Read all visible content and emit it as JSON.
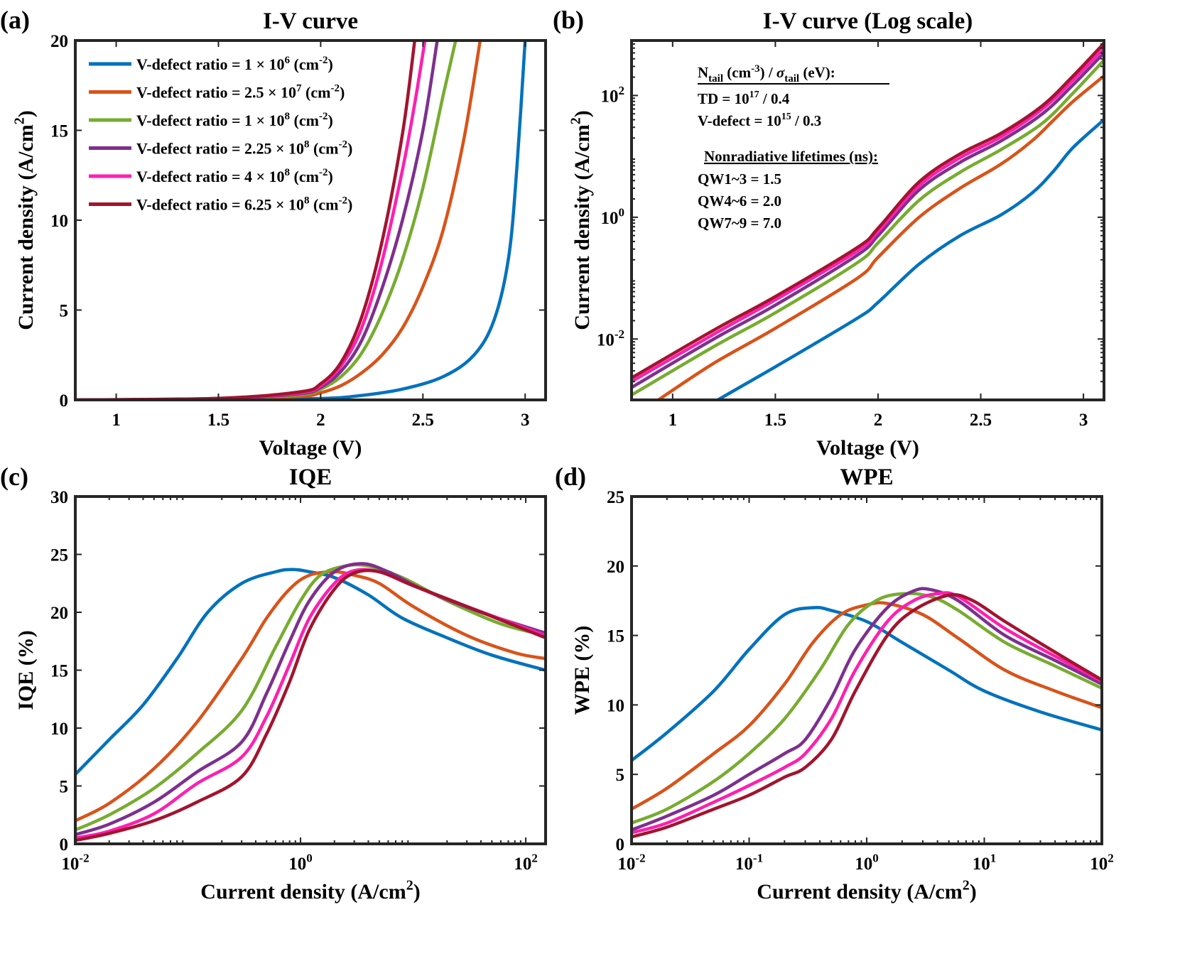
{
  "colors": [
    "#0072BD",
    "#D95319",
    "#77AC30",
    "#7E2F8E",
    "#FF1FB0",
    "#A2142F"
  ],
  "legend": [
    {
      "base": "V-defect ratio = 1 × 10",
      "exp": "6",
      "unit": " (cm",
      "unitexp": "-2",
      "close": ")"
    },
    {
      "base": "V-defect ratio = 2.5 × 10",
      "exp": "7",
      "unit": " (cm",
      "unitexp": "-2",
      "close": ")"
    },
    {
      "base": "V-defect ratio = 1 × 10",
      "exp": "8",
      "unit": " (cm",
      "unitexp": "-2",
      "close": ")"
    },
    {
      "base": "V-defect ratio = 2.25 × 10",
      "exp": "8",
      "unit": " (cm",
      "unitexp": "-2",
      "close": ")"
    },
    {
      "base": "V-defect ratio = 4 × 10",
      "exp": "8",
      "unit": " (cm",
      "unitexp": "-2",
      "close": ")"
    },
    {
      "base": "V-defect ratio = 6.25 × 10",
      "exp": "8",
      "unit": " (cm",
      "unitexp": "-2",
      "close": ")"
    }
  ],
  "annotation_b": {
    "line1": {
      "n": "N",
      "nsub": "tail",
      "unit1": " (cm",
      "unit1exp": "-3",
      "slash": ") / ",
      "sigma": "σ",
      "sigmasub": "tail",
      "unit2": " (eV):"
    },
    "td": {
      "base": "TD = 10",
      "exp": "17",
      "rest": " / 0.4"
    },
    "vdef": {
      "base": "V-defect = 10",
      "exp": "15",
      "rest": " / 0.3"
    },
    "heading2": "Nonradiative lifetimes (ns):",
    "qw": [
      "QW1~3 = 1.5",
      "QW4~6 = 2.0",
      "QW7~9 = 7.0"
    ]
  },
  "chart_data": [
    {
      "panel": "(a)",
      "type": "line",
      "title": "I-V curve",
      "xlabel": "Voltage (V)",
      "ylabel": "Current density (A/cm",
      "ylabel_exp": "2",
      "ylabel_close": ")",
      "xlim": [
        0.8,
        3.1
      ],
      "ylim": [
        0,
        20
      ],
      "xscale": "linear",
      "yscale": "linear",
      "xticks": [
        {
          "v": 1,
          "t": "1"
        },
        {
          "v": 1.5,
          "t": "1.5"
        },
        {
          "v": 2,
          "t": "2"
        },
        {
          "v": 2.5,
          "t": "2.5"
        },
        {
          "v": 3,
          "t": "3"
        }
      ],
      "yticks": [
        {
          "v": 0,
          "t": "0"
        },
        {
          "v": 5,
          "t": "5"
        },
        {
          "v": 10,
          "t": "10"
        },
        {
          "v": 15,
          "t": "15"
        },
        {
          "v": 20,
          "t": "20"
        }
      ],
      "series": [
        {
          "name": "V-defect ratio = 1 × 10^6 (cm^-2)",
          "x": [
            0.8,
            1.5,
            2.0,
            2.2,
            2.4,
            2.6,
            2.75,
            2.85,
            2.92,
            2.96,
            3.0
          ],
          "y": [
            0,
            0.02,
            0.08,
            0.25,
            0.6,
            1.3,
            2.5,
            4.5,
            8,
            13,
            20
          ]
        },
        {
          "name": "V-defect ratio = 2.5 × 10^7 (cm^-2)",
          "x": [
            0.8,
            1.5,
            1.9,
            2.0,
            2.1,
            2.2,
            2.3,
            2.4,
            2.5,
            2.6,
            2.7,
            2.78
          ],
          "y": [
            0,
            0.05,
            0.2,
            0.4,
            0.8,
            1.5,
            2.5,
            4.0,
            6.3,
            9.5,
            14.5,
            20
          ]
        },
        {
          "name": "V-defect ratio = 1 × 10^8 (cm^-2)",
          "x": [
            0.8,
            1.5,
            1.9,
            2.0,
            2.1,
            2.2,
            2.3,
            2.4,
            2.5,
            2.6,
            2.66
          ],
          "y": [
            0,
            0.06,
            0.3,
            0.6,
            1.3,
            2.6,
            4.8,
            7.8,
            11.8,
            17,
            20
          ]
        },
        {
          "name": "V-defect ratio = 2.25 × 10^8 (cm^-2)",
          "x": [
            0.8,
            1.5,
            1.9,
            2.0,
            2.1,
            2.2,
            2.3,
            2.4,
            2.5,
            2.57
          ],
          "y": [
            0,
            0.07,
            0.35,
            0.7,
            1.6,
            3.3,
            6.2,
            10.0,
            15.0,
            20
          ]
        },
        {
          "name": "V-defect ratio = 4 × 10^8 (cm^-2)",
          "x": [
            0.8,
            1.5,
            1.9,
            2.0,
            2.1,
            2.2,
            2.3,
            2.4,
            2.46,
            2.51
          ],
          "y": [
            0,
            0.08,
            0.4,
            0.8,
            1.9,
            4.0,
            7.7,
            12.8,
            16.5,
            20
          ]
        },
        {
          "name": "V-defect ratio = 6.25 × 10^8 (cm^-2)",
          "x": [
            0.8,
            1.5,
            1.9,
            2.0,
            2.1,
            2.2,
            2.3,
            2.4,
            2.46
          ],
          "y": [
            0,
            0.09,
            0.45,
            0.9,
            2.1,
            4.6,
            8.8,
            14.8,
            20
          ]
        }
      ]
    },
    {
      "panel": "(b)",
      "type": "line",
      "title": "I-V curve (Log scale)",
      "xlabel": "Voltage (V)",
      "ylabel": "Current density (A/cm",
      "ylabel_exp": "2",
      "ylabel_close": ")",
      "xlim": [
        0.8,
        3.1
      ],
      "ylim": [
        0.001,
        800
      ],
      "xscale": "linear",
      "yscale": "log",
      "xticks": [
        {
          "v": 1,
          "t": "1"
        },
        {
          "v": 1.5,
          "t": "1.5"
        },
        {
          "v": 2,
          "t": "2"
        },
        {
          "v": 2.5,
          "t": "2.5"
        },
        {
          "v": 3,
          "t": "3"
        }
      ],
      "yticks": [
        {
          "v": 0.01,
          "base": "10",
          "exp": "-2"
        },
        {
          "v": 1,
          "base": "10",
          "exp": "0"
        },
        {
          "v": 100,
          "base": "10",
          "exp": "2"
        }
      ],
      "series": [
        {
          "name": "V-defect ratio = 1 × 10^6 (cm^-2)",
          "x": [
            1.22,
            1.5,
            1.9,
            2.0,
            2.2,
            2.4,
            2.6,
            2.75,
            2.85,
            2.95,
            3.1
          ],
          "y": [
            0.001,
            0.0035,
            0.022,
            0.04,
            0.17,
            0.5,
            1.1,
            2.5,
            5.5,
            14,
            40
          ]
        },
        {
          "name": "V-defect ratio = 2.5 × 10^7 (cm^-2)",
          "x": [
            0.93,
            1.2,
            1.5,
            1.9,
            2.0,
            2.2,
            2.4,
            2.6,
            2.75,
            2.85,
            2.95,
            3.1
          ],
          "y": [
            0.001,
            0.004,
            0.015,
            0.1,
            0.22,
            1.0,
            3.0,
            7.5,
            18,
            38,
            80,
            210
          ]
        },
        {
          "name": "V-defect ratio = 1 × 10^8 (cm^-2)",
          "x": [
            0.8,
            1.2,
            1.5,
            1.9,
            2.0,
            2.2,
            2.4,
            2.6,
            2.8,
            2.95,
            3.1
          ],
          "y": [
            0.0012,
            0.0075,
            0.027,
            0.18,
            0.38,
            1.9,
            5.5,
            13,
            35,
            110,
            380
          ]
        },
        {
          "name": "V-defect ratio = 2.25 × 10^8 (cm^-2)",
          "x": [
            0.8,
            1.2,
            1.5,
            1.9,
            2.0,
            2.2,
            2.4,
            2.6,
            2.8,
            2.95,
            3.1
          ],
          "y": [
            0.0016,
            0.01,
            0.036,
            0.24,
            0.5,
            2.8,
            8.0,
            18,
            50,
            150,
            500
          ]
        },
        {
          "name": "V-defect ratio = 4 × 10^8 (cm^-2)",
          "x": [
            0.8,
            1.2,
            1.5,
            1.9,
            2.0,
            2.2,
            2.4,
            2.6,
            2.8,
            2.95,
            3.1
          ],
          "y": [
            0.002,
            0.012,
            0.044,
            0.28,
            0.58,
            3.3,
            9.5,
            21,
            60,
            180,
            600
          ]
        },
        {
          "name": "V-defect ratio = 6.25 × 10^8 (cm^-2)",
          "x": [
            0.8,
            1.2,
            1.5,
            1.9,
            2.0,
            2.2,
            2.4,
            2.6,
            2.8,
            2.95,
            3.1
          ],
          "y": [
            0.0023,
            0.014,
            0.05,
            0.32,
            0.66,
            3.8,
            11,
            24,
            68,
            210,
            720
          ]
        }
      ]
    },
    {
      "panel": "(c)",
      "type": "line",
      "title": "IQE",
      "xlabel": "Current density (A/cm",
      "xlabel_exp": "2",
      "xlabel_close": ")",
      "ylabel": "IQE (%)",
      "xlim": [
        0.01,
        150
      ],
      "ylim": [
        0,
        30
      ],
      "xscale": "log",
      "yscale": "linear",
      "xticks": [
        {
          "v": 0.01,
          "base": "10",
          "exp": "-2"
        },
        {
          "v": 1,
          "base": "10",
          "exp": "0"
        },
        {
          "v": 100,
          "base": "10",
          "exp": "2"
        }
      ],
      "yticks": [
        {
          "v": 0,
          "t": "0"
        },
        {
          "v": 5,
          "t": "5"
        },
        {
          "v": 10,
          "t": "10"
        },
        {
          "v": 15,
          "t": "15"
        },
        {
          "v": 20,
          "t": "20"
        },
        {
          "v": 25,
          "t": "25"
        },
        {
          "v": 30,
          "t": "30"
        }
      ],
      "series": [
        {
          "name": "V-defect ratio = 1 × 10^6 (cm^-2)",
          "x": [
            0.01,
            0.02,
            0.04,
            0.08,
            0.15,
            0.3,
            0.6,
            0.85,
            1.2,
            2,
            4,
            8,
            20,
            50,
            150
          ],
          "y": [
            6,
            9,
            12,
            16,
            20,
            22.5,
            23.5,
            23.7,
            23.5,
            23,
            21.5,
            19.5,
            17.8,
            16.3,
            15
          ]
        },
        {
          "name": "V-defect ratio = 2.5 × 10^7 (cm^-2)",
          "x": [
            0.01,
            0.02,
            0.05,
            0.12,
            0.3,
            0.5,
            0.8,
            1.2,
            2,
            3,
            5,
            10,
            30,
            80,
            150
          ],
          "y": [
            2,
            3.5,
            6.5,
            10.5,
            16,
            19.5,
            22,
            23.2,
            23.5,
            23.2,
            22.5,
            20.5,
            18,
            16.5,
            16
          ]
        },
        {
          "name": "V-defect ratio = 1 × 10^8 (cm^-2)",
          "x": [
            0.01,
            0.02,
            0.05,
            0.12,
            0.3,
            0.6,
            1.0,
            1.5,
            2.5,
            4,
            8,
            20,
            60,
            150
          ],
          "y": [
            1.2,
            2.5,
            4.8,
            7.8,
            11.5,
            17,
            21,
            23.2,
            24,
            24,
            23,
            21,
            19,
            18
          ]
        },
        {
          "name": "V-defect ratio = 2.25 × 10^8 (cm^-2)",
          "x": [
            0.01,
            0.02,
            0.05,
            0.12,
            0.3,
            0.5,
            0.8,
            1.2,
            2,
            3.5,
            6,
            12,
            40,
            150
          ],
          "y": [
            0.8,
            1.7,
            3.6,
            6.2,
            8.8,
            13,
            17.5,
            21,
            23.5,
            24.2,
            23.5,
            22,
            20,
            18.2
          ]
        },
        {
          "name": "V-defect ratio = 4 × 10^8 (cm^-2)",
          "x": [
            0.01,
            0.02,
            0.05,
            0.12,
            0.3,
            0.5,
            0.8,
            1.2,
            2,
            3,
            5,
            10,
            30,
            150
          ],
          "y": [
            0.5,
            1.1,
            2.6,
            5.2,
            7.5,
            11,
            15.5,
            19.5,
            22.5,
            23.6,
            23.5,
            22.3,
            20.5,
            18
          ]
        },
        {
          "name": "V-defect ratio = 6.25 × 10^8 (cm^-2)",
          "x": [
            0.01,
            0.02,
            0.05,
            0.12,
            0.3,
            0.5,
            0.8,
            1.2,
            2,
            3,
            5,
            10,
            30,
            150
          ],
          "y": [
            0.3,
            0.9,
            2.0,
            3.6,
            5.8,
            9.5,
            14,
            18.5,
            22,
            23.4,
            23.5,
            22.3,
            20.5,
            17.8
          ]
        }
      ]
    },
    {
      "panel": "(d)",
      "type": "line",
      "title": "WPE",
      "xlabel": "Current density (A/cm",
      "xlabel_exp": "2",
      "xlabel_close": ")",
      "ylabel": "WPE (%)",
      "xlim": [
        0.01,
        100
      ],
      "ylim": [
        0,
        25
      ],
      "xscale": "log",
      "yscale": "linear",
      "xticks": [
        {
          "v": 0.01,
          "base": "10",
          "exp": "-2"
        },
        {
          "v": 0.1,
          "base": "10",
          "exp": "-1"
        },
        {
          "v": 1,
          "base": "10",
          "exp": "0"
        },
        {
          "v": 10,
          "base": "10",
          "exp": "1"
        },
        {
          "v": 100,
          "base": "10",
          "exp": "2"
        }
      ],
      "yticks": [
        {
          "v": 0,
          "t": "0"
        },
        {
          "v": 5,
          "t": "5"
        },
        {
          "v": 10,
          "t": "10"
        },
        {
          "v": 15,
          "t": "15"
        },
        {
          "v": 20,
          "t": "20"
        },
        {
          "v": 25,
          "t": "25"
        }
      ],
      "series": [
        {
          "name": "V-defect ratio = 1 × 10^6 (cm^-2)",
          "x": [
            0.01,
            0.02,
            0.05,
            0.1,
            0.2,
            0.35,
            0.5,
            1,
            2,
            5,
            10,
            30,
            100
          ],
          "y": [
            6,
            8,
            11,
            14,
            16.5,
            17,
            16.8,
            16,
            14.5,
            12.5,
            11,
            9.5,
            8.2
          ]
        },
        {
          "name": "V-defect ratio = 2.5 × 10^7 (cm^-2)",
          "x": [
            0.01,
            0.02,
            0.05,
            0.1,
            0.2,
            0.35,
            0.6,
            1,
            1.5,
            3,
            6,
            15,
            40,
            100
          ],
          "y": [
            2.5,
            4,
            6.5,
            8.5,
            11.5,
            14.5,
            16.5,
            17.2,
            17.3,
            16.5,
            14.8,
            12.5,
            11,
            9.8
          ]
        },
        {
          "name": "V-defect ratio = 1 × 10^8 (cm^-2)",
          "x": [
            0.01,
            0.02,
            0.05,
            0.1,
            0.2,
            0.4,
            0.7,
            1.2,
            2,
            3.5,
            6,
            15,
            40,
            100
          ],
          "y": [
            1.5,
            2.5,
            4.5,
            6.5,
            9,
            12.5,
            15.8,
            17.5,
            18,
            17.8,
            16.8,
            14.5,
            12.8,
            11.2
          ]
        },
        {
          "name": "V-defect ratio = 2.25 × 10^8 (cm^-2)",
          "x": [
            0.01,
            0.02,
            0.05,
            0.1,
            0.2,
            0.3,
            0.5,
            0.8,
            1.5,
            2.5,
            3.5,
            6,
            15,
            40,
            100
          ],
          "y": [
            1,
            2,
            3.5,
            5,
            6.5,
            7.5,
            10.5,
            14,
            17,
            18.2,
            18.3,
            17.5,
            15,
            13.2,
            11.5
          ]
        },
        {
          "name": "V-defect ratio = 4 × 10^8 (cm^-2)",
          "x": [
            0.01,
            0.02,
            0.05,
            0.1,
            0.2,
            0.3,
            0.5,
            0.8,
            1.5,
            2.5,
            4,
            6,
            15,
            40,
            100
          ],
          "y": [
            0.8,
            1.5,
            3,
            4.2,
            5.5,
            6.5,
            9,
            12.5,
            16,
            17.5,
            18,
            17.8,
            15.5,
            13.5,
            11.7
          ]
        },
        {
          "name": "V-defect ratio = 6.25 × 10^8 (cm^-2)",
          "x": [
            0.01,
            0.02,
            0.05,
            0.1,
            0.2,
            0.3,
            0.5,
            0.8,
            1.5,
            2.5,
            5,
            8,
            15,
            40,
            100
          ],
          "y": [
            0.5,
            1.2,
            2.5,
            3.5,
            4.8,
            5.5,
            7.5,
            11,
            15,
            16.8,
            17.9,
            17.5,
            16,
            13.8,
            11.8
          ]
        }
      ]
    }
  ]
}
